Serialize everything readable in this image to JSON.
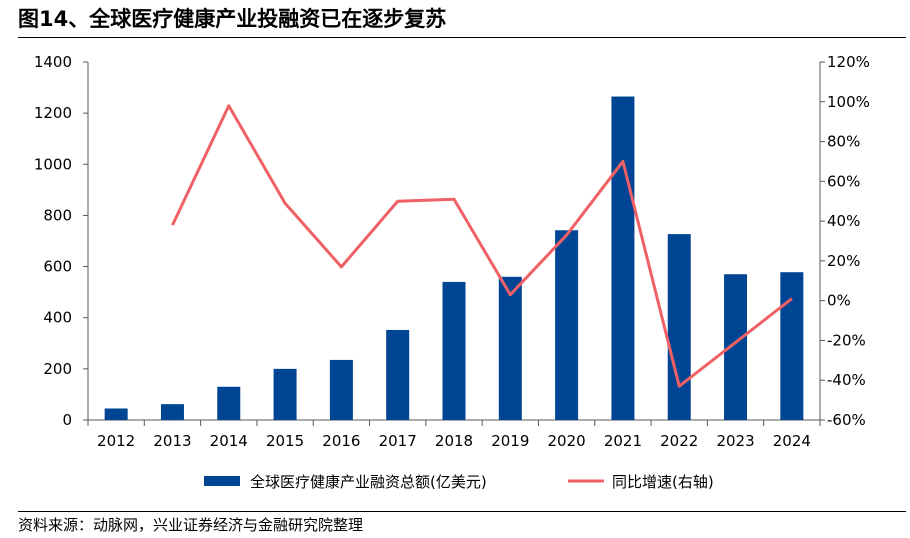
{
  "title": "图14、全球医疗健康产业投融资已在逐步复苏",
  "source": "资料来源：动脉网，兴业证券经济与金融研究院整理",
  "chart_data": {
    "type": "bar",
    "categories": [
      "2012",
      "2013",
      "2014",
      "2015",
      "2016",
      "2017",
      "2018",
      "2019",
      "2020",
      "2021",
      "2022",
      "2023",
      "2024"
    ],
    "series": [
      {
        "name": "全球医疗健康产业融资总额(亿美元)",
        "type": "bar",
        "axis": "left",
        "color": "#004593",
        "values": [
          45,
          62,
          130,
          200,
          235,
          352,
          540,
          560,
          742,
          1265,
          727,
          570,
          578
        ]
      },
      {
        "name": "同比增速(右轴)",
        "type": "line",
        "axis": "right",
        "color": "#EF6165",
        "values": [
          null,
          0.38,
          0.98,
          0.49,
          0.17,
          0.5,
          0.51,
          0.03,
          0.33,
          0.7,
          -0.43,
          -0.21,
          0.01
        ]
      }
    ],
    "left_axis": {
      "min": 0,
      "max": 1400,
      "ticks": [
        "0",
        "200",
        "400",
        "600",
        "800",
        "1000",
        "1200",
        "1400"
      ]
    },
    "right_axis": {
      "min": -0.6,
      "max": 1.2,
      "ticks": [
        "-60%",
        "-40%",
        "-20%",
        "0%",
        "20%",
        "40%",
        "60%",
        "80%",
        "100%",
        "120%"
      ]
    },
    "grid": false,
    "legend_position": "bottom"
  }
}
